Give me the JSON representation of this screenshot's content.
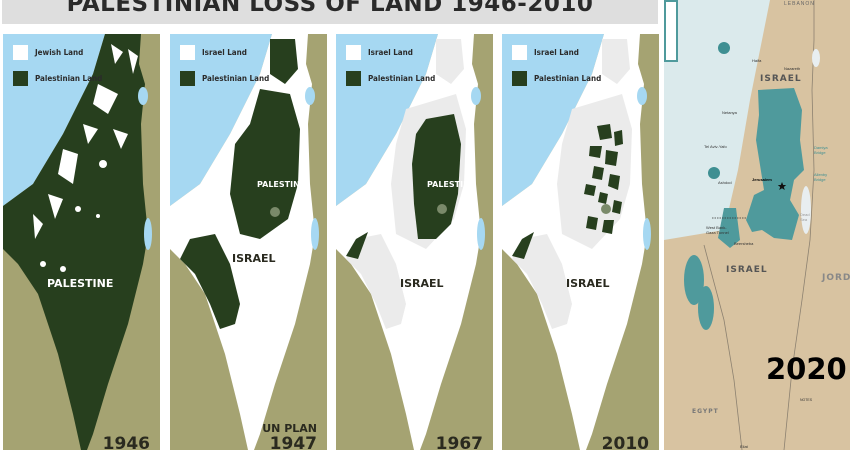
{
  "title": "PALESTINIAN LOSS OF LAND 1946-2010",
  "colors": {
    "sea": "#a6d8f2",
    "neighbor_land": "#a5a372",
    "palestinian_land": "#273f1e",
    "israel_land": "#ffffff",
    "former_land": "#ebebeb",
    "plan_sea": "#dbeaec",
    "plan_land": "#d8c3a1",
    "plan_palestine": "#4f9a9c"
  },
  "panels": [
    {
      "legend_white": "Jewish Land",
      "legend_dark": "Palestinian Land",
      "label_main": "PALESTINE",
      "year": "1946"
    },
    {
      "legend_white": "Israel Land",
      "legend_dark": "Palestinian Land",
      "label_palestine": "PALESTINE",
      "label_israel": "ISRAEL",
      "subtitle": "UN PLAN",
      "year": "1947"
    },
    {
      "legend_white": "Israel Land",
      "legend_dark": "Palestinian Land",
      "label_palestine": "PALESTINE",
      "label_israel": "ISRAEL",
      "year": "1967"
    },
    {
      "legend_white": "Israel Land",
      "legend_dark": "Palestinian Land",
      "label_israel": "ISRAEL",
      "year": "2010"
    }
  ],
  "plan_map": {
    "year": "2020",
    "labels": {
      "lebanon": "LEBANON",
      "haifa": "Haifa",
      "nazareth": "Nazareth",
      "israel_north": "ISRAEL",
      "netanya": "Netanya",
      "tel_aviv": "Tel Aviv-Yafo",
      "ashdod": "Ashdod",
      "jerusalem": "Jerusalem",
      "damiya": "Damiya Bridge",
      "allenby": "Allenby Bridge",
      "tunnel": "West Bank-Gaza Tunnel",
      "beersheba": "Beersheba",
      "dead_sea": "Dead Sea",
      "israel_south": "ISRAEL",
      "jordan": "JORD",
      "egypt": "EGYPT",
      "eilat": "Eilat",
      "notes": "NOTES"
    }
  }
}
